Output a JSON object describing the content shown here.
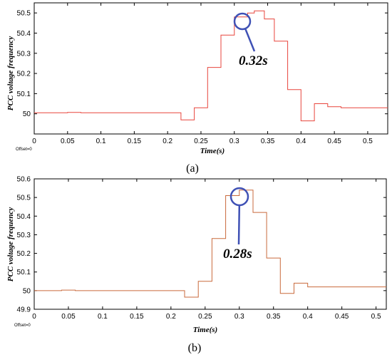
{
  "chart_data": [
    {
      "type": "line",
      "panel_label": "(a)",
      "xlabel": "Time(s)",
      "ylabel": "PCC voltage frequency",
      "offset_text": "Offset=0",
      "xlim": [
        0,
        0.53
      ],
      "ylim": [
        49.9,
        50.55
      ],
      "xticks": [
        0,
        0.05,
        0.1,
        0.15,
        0.2,
        0.25,
        0.3,
        0.35,
        0.4,
        0.45,
        0.5
      ],
      "xtick_labels": [
        "0",
        "0.05",
        "0.1",
        "0.15",
        "0.2",
        "0.25",
        "0.3",
        "0.35",
        "0.4",
        "0.45",
        "0.5"
      ],
      "yticks": [
        50,
        50.1,
        50.2,
        50.3,
        50.4,
        50.5
      ],
      "ytick_labels": [
        "50",
        "50.1",
        "50.2",
        "50.3",
        "50.4",
        "50.5"
      ],
      "grid": false,
      "line_color": "#e8453c",
      "series": [
        {
          "x": [
            0,
            0.05,
            0.05,
            0.07,
            0.07,
            0.22,
            0.22,
            0.24,
            0.24,
            0.26,
            0.26,
            0.28,
            0.28,
            0.3,
            0.3,
            0.32,
            0.32,
            0.33,
            0.33,
            0.345,
            0.345,
            0.36,
            0.36,
            0.38,
            0.38,
            0.4,
            0.4,
            0.42,
            0.42,
            0.44,
            0.44,
            0.46,
            0.46,
            0.53
          ],
          "y": [
            50.005,
            50.005,
            50.007,
            50.007,
            50.005,
            50.005,
            49.97,
            49.97,
            50.03,
            50.03,
            50.23,
            50.23,
            50.39,
            50.39,
            50.48,
            50.48,
            50.5,
            50.5,
            50.51,
            50.51,
            50.47,
            50.47,
            50.36,
            50.36,
            50.12,
            50.12,
            49.965,
            49.965,
            50.05,
            50.05,
            50.035,
            50.035,
            50.03,
            50.03
          ]
        }
      ],
      "annotation": {
        "text": "0.32s",
        "x": 0.32,
        "y": 50.49
      }
    },
    {
      "type": "line",
      "panel_label": "(b)",
      "xlabel": "Time(s)",
      "ylabel": "PCC voltage frequency",
      "offset_text": "Offset=0",
      "xlim": [
        0,
        0.515
      ],
      "ylim": [
        49.9,
        50.6
      ],
      "xticks": [
        0,
        0.05,
        0.1,
        0.15,
        0.2,
        0.25,
        0.3,
        0.35,
        0.4,
        0.45,
        0.5
      ],
      "xtick_labels": [
        "0",
        "0.05",
        "0.1",
        "0.15",
        "0.2",
        "0.25",
        "0.3",
        "0.35",
        "0.4",
        "0.45",
        "0.5"
      ],
      "yticks": [
        49.9,
        50,
        50.1,
        50.2,
        50.3,
        50.4,
        50.5,
        50.6
      ],
      "ytick_labels": [
        "49.9",
        "50",
        "50.1",
        "50.2",
        "50.3",
        "50.4",
        "50.5",
        "50.6"
      ],
      "grid": false,
      "line_color": "#c96a3c",
      "series": [
        {
          "x": [
            0,
            0.04,
            0.04,
            0.06,
            0.06,
            0.22,
            0.22,
            0.24,
            0.24,
            0.26,
            0.26,
            0.28,
            0.28,
            0.3,
            0.3,
            0.32,
            0.32,
            0.34,
            0.34,
            0.36,
            0.36,
            0.38,
            0.38,
            0.4,
            0.4,
            0.515
          ],
          "y": [
            50.0,
            50.0,
            50.003,
            50.003,
            50.0,
            50.0,
            49.965,
            49.965,
            50.05,
            50.05,
            50.28,
            50.28,
            50.51,
            50.51,
            50.54,
            50.54,
            50.42,
            50.42,
            50.175,
            50.175,
            49.985,
            49.985,
            50.04,
            50.04,
            50.02,
            50.02
          ]
        }
      ],
      "annotation": {
        "text": "0.28s",
        "x": 0.3,
        "y": 50.52
      }
    }
  ]
}
